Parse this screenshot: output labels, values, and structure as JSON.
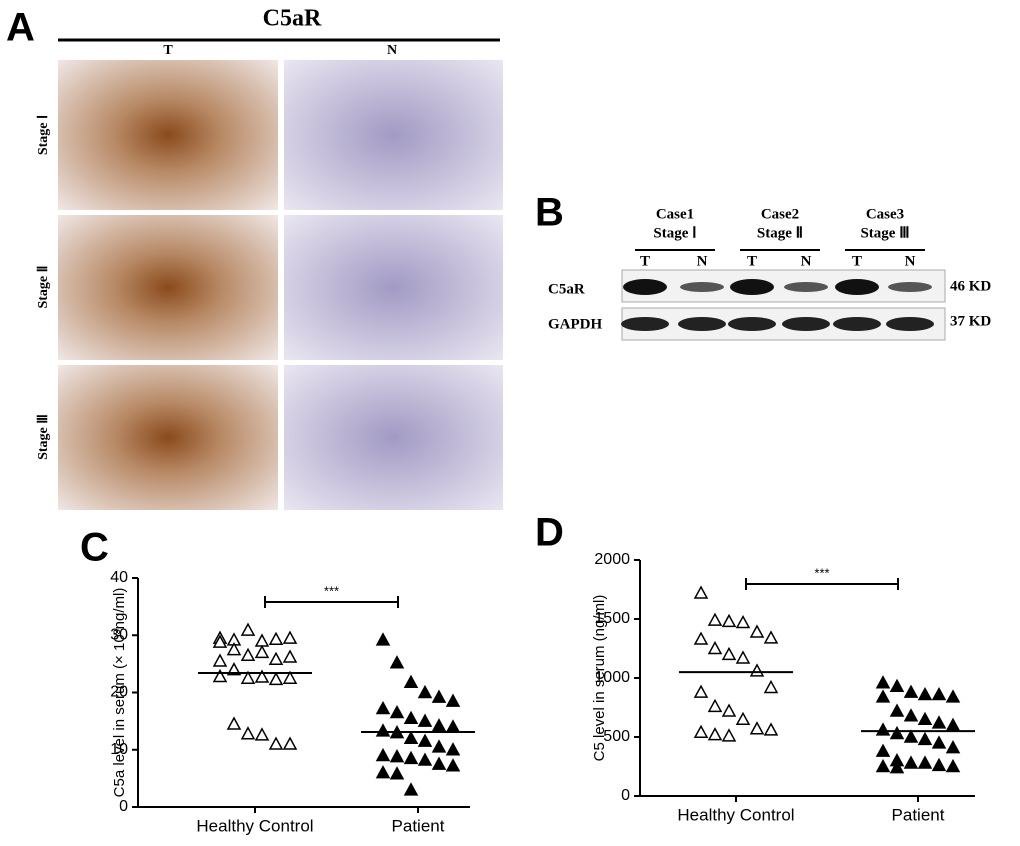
{
  "panels": {
    "a": {
      "label": "A",
      "title": "C5aR",
      "columns": [
        "T",
        "N"
      ],
      "rows": [
        "Stage Ⅰ",
        "Stage Ⅱ",
        "Stage Ⅲ"
      ]
    },
    "b": {
      "label": "B",
      "cases": [
        {
          "name": "Case1",
          "stage": "Stage Ⅰ"
        },
        {
          "name": "Case2",
          "stage": "Stage Ⅱ"
        },
        {
          "name": "Case3",
          "stage": "Stage Ⅲ"
        }
      ],
      "lanes": [
        "T",
        "N",
        "T",
        "N",
        "T",
        "N"
      ],
      "bands": [
        {
          "name": "C5aR",
          "size": "46 KD"
        },
        {
          "name": "GAPDH",
          "size": "37 KD"
        }
      ]
    }
  },
  "chart_data": [
    {
      "type": "scatter",
      "panel_label": "C",
      "ylabel": "C5a level in serum (× 10³ng/ml)",
      "categories": [
        "Healthy Control",
        "Patient"
      ],
      "ylim": [
        0,
        40
      ],
      "yticks": [
        0,
        10,
        20,
        30,
        40
      ],
      "significance": "***",
      "color": "#000000",
      "means": [
        23.4,
        13.1
      ],
      "series": [
        {
          "marker": "open-triangle",
          "values": [
            29.5,
            29.2,
            30.9,
            29.0,
            29.3,
            29.5,
            28.8,
            27.5,
            26.5,
            27.0,
            25.8,
            26.2,
            25.5,
            24.0,
            22.5,
            22.7,
            22.3,
            22.5,
            22.8,
            14.5,
            12.8,
            12.6,
            11.0,
            11.0
          ]
        },
        {
          "marker": "filled-triangle",
          "values": [
            29.2,
            25.2,
            21.8,
            20.0,
            19.2,
            18.5,
            17.2,
            16.5,
            15.5,
            15.0,
            14.2,
            14.0,
            13.3,
            13.0,
            12.0,
            11.5,
            10.5,
            10.0,
            9.0,
            8.8,
            8.5,
            8.2,
            7.5,
            7.2,
            6.0,
            5.8,
            3.0
          ]
        }
      ]
    },
    {
      "type": "scatter",
      "panel_label": "D",
      "ylabel": "C5 level in serum (ng/ml)",
      "categories": [
        "Healthy Control",
        "Patient"
      ],
      "ylim": [
        0,
        2000
      ],
      "yticks": [
        0,
        500,
        1000,
        1500,
        2000
      ],
      "significance": "***",
      "color": "#000000",
      "means": [
        1050,
        550
      ],
      "series": [
        {
          "marker": "open-triangle",
          "values": [
            1720,
            1490,
            1480,
            1470,
            1390,
            1340,
            1330,
            1250,
            1200,
            1170,
            1060,
            920,
            880,
            760,
            720,
            650,
            570,
            560,
            540,
            520,
            510
          ]
        },
        {
          "marker": "filled-triangle",
          "values": [
            960,
            930,
            880,
            860,
            860,
            840,
            840,
            720,
            680,
            650,
            620,
            600,
            560,
            530,
            500,
            480,
            450,
            410,
            380,
            300,
            280,
            280,
            260,
            250,
            250,
            240
          ]
        }
      ]
    }
  ]
}
